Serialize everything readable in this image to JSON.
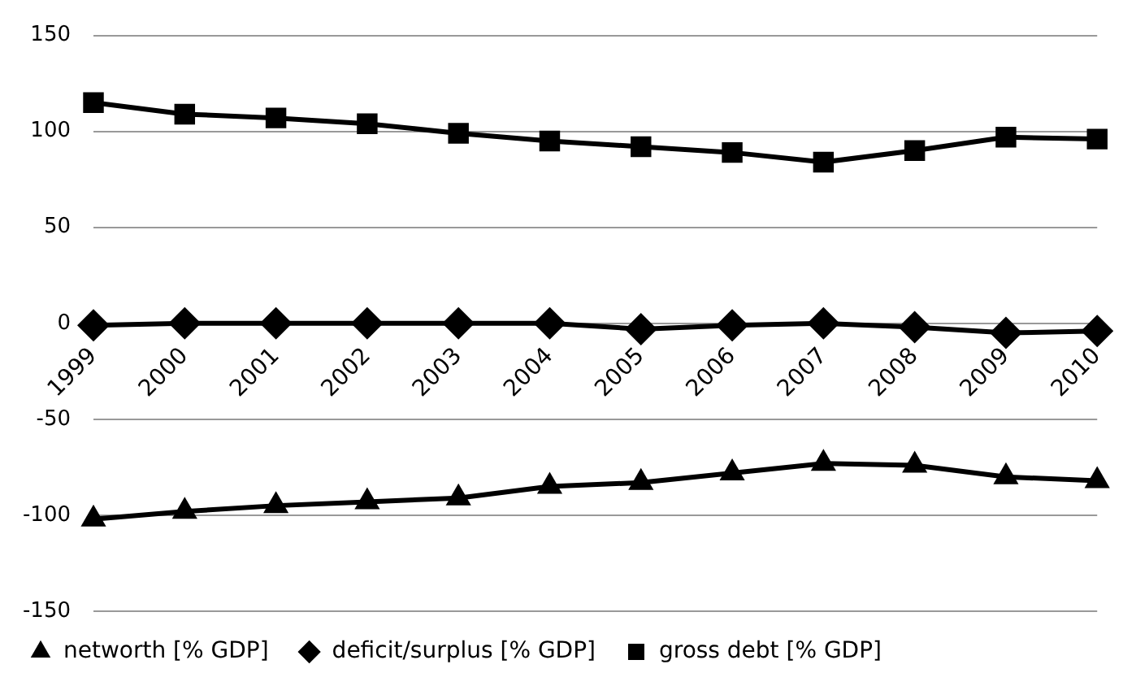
{
  "chart_data": {
    "type": "line",
    "categories": [
      "1999",
      "2000",
      "2001",
      "2002",
      "2003",
      "2004",
      "2005",
      "2006",
      "2007",
      "2008",
      "2009",
      "2010"
    ],
    "series": [
      {
        "name": "networth [% GDP]",
        "color": "#000000",
        "marker": "triangle",
        "values": [
          -102,
          -98,
          -95,
          -93,
          -91,
          -85,
          -83,
          -78,
          -73,
          -74,
          -80,
          -82
        ]
      },
      {
        "name": "deficit/surplus [% GDP]",
        "color": "#000000",
        "marker": "diamond",
        "values": [
          -1,
          0,
          0,
          0,
          0,
          0,
          -3,
          -1,
          0,
          -2,
          -5,
          -4
        ]
      },
      {
        "name": "gross debt [% GDP]",
        "color": "#000000",
        "marker": "square",
        "values": [
          115,
          109,
          107,
          104,
          99,
          95,
          92,
          89,
          84,
          90,
          97,
          96
        ]
      }
    ],
    "ylim": [
      -150,
      150
    ],
    "yticks": [
      -150,
      -100,
      -50,
      0,
      50,
      100,
      150
    ],
    "grid": "y",
    "legend": "bottom",
    "line_style": "solid"
  }
}
